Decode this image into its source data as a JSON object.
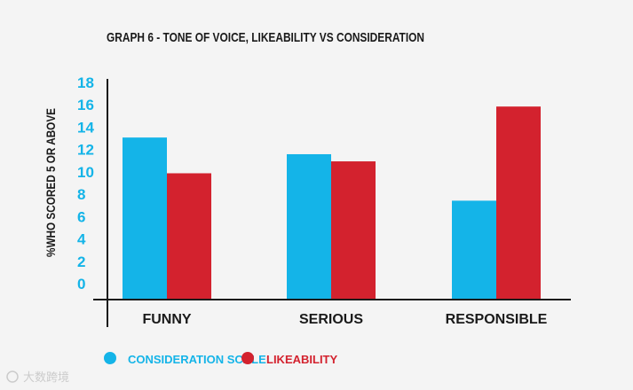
{
  "chart_data": {
    "type": "bar",
    "title": "GRAPH 6 - TONE OF VOICE, LIKEABILITY VS CONSIDERATION",
    "xlabel": "",
    "ylabel": "%WHO SCORED 5 OR ABOVE",
    "ylim": [
      0,
      18
    ],
    "yticks": [
      18,
      16,
      14,
      12,
      10,
      8,
      6,
      4,
      2,
      0
    ],
    "categories": [
      "FUNNY",
      "SERIOUS",
      "RESPONSIBLE"
    ],
    "series": [
      {
        "name": "CONSIDERATION SCALE",
        "color": "#14b4e8",
        "values": [
          13.6,
          12.2,
          8.3
        ]
      },
      {
        "name": "LIKEABILITY",
        "color": "#d3222e",
        "values": [
          10.6,
          11.6,
          16.2
        ]
      }
    ],
    "legend_position": "bottom-left"
  },
  "watermark": "大数跨境",
  "colors": {
    "axis": "#1a1a1a",
    "tick_text": "#14b4e8",
    "text": "#1a1a1a",
    "background": "#f4f4f4"
  }
}
